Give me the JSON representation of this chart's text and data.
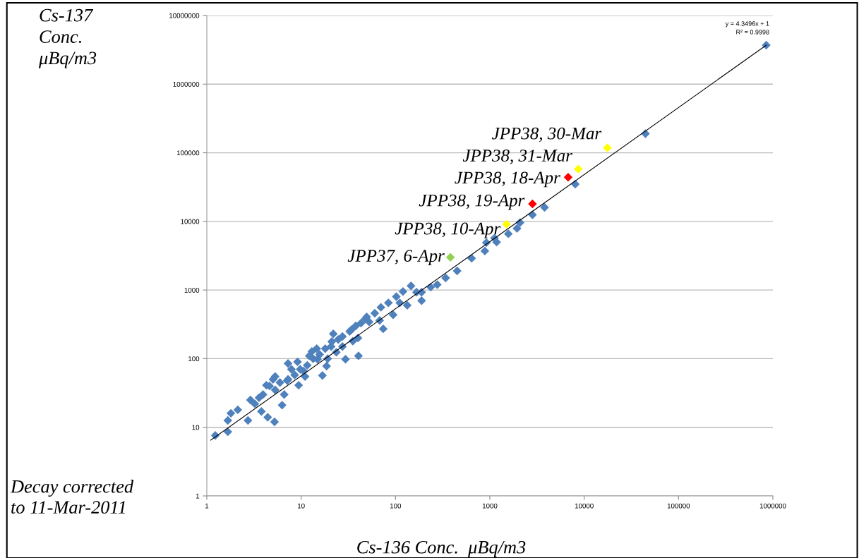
{
  "chart_data": {
    "type": "scatter",
    "xlabel": "Cs-136 Conc.  μBq/m3",
    "ylabel": "Cs-137\nConc.\nμBq/m3",
    "log": "xy",
    "grid": "y",
    "marker": "diamond",
    "legend": false,
    "xlim": [
      1,
      1000000
    ],
    "ylim": [
      1,
      10000000
    ],
    "xticks": [
      1,
      10,
      100,
      1000,
      10000,
      100000,
      1000000
    ],
    "yticks": [
      1,
      10,
      100,
      1000,
      10000,
      100000,
      1000000,
      10000000
    ],
    "series": [
      {
        "color": "#4f81bd",
        "x": [
          1.23,
          1.67,
          1.67,
          1.8,
          2.13,
          2.73,
          2.9,
          3.58,
          3.79,
          4.42,
          5.22,
          4.28,
          6.28,
          7.26,
          5.03,
          7.13,
          9.4,
          10.6,
          13,
          16.8,
          14.9,
          18.6,
          21.1,
          23.6,
          29.5,
          34.3,
          40.5,
          40,
          52.5,
          49.5,
          67.9,
          74.1,
          94.4,
          111,
          133,
          167,
          189,
          236,
          5.3,
          5.96,
          7.26,
          8.53,
          9.77,
          11.6,
          13.4,
          15.7,
          18,
          20.8,
          24.7,
          27.4,
          32.7,
          37.9,
          43.1,
          48,
          60.3,
          70,
          84,
          102,
          120,
          146,
          5.3,
          6.61,
          7.89,
          11,
          12.2,
          14.6,
          19.1,
          21.9,
          27.4,
          35.3,
          9.15,
          3.94,
          4.62,
          3.23,
          189,
          277,
          340,
          450,
          641,
          885,
          918,
          1120,
          1180,
          1570,
          1940,
          2090,
          2830,
          3800,
          8040,
          44600,
          850000
        ],
        "values": [
          7.6,
          8.6,
          12.6,
          16,
          18,
          12.6,
          25,
          27,
          17,
          14,
          12,
          41,
          21,
          85,
          50,
          48,
          41,
          66,
          127,
          57,
          98,
          78,
          177,
          124,
          98,
          266,
          110,
          200,
          344,
          405,
          361,
          272,
          435,
          650,
          600,
          930,
          700,
          1100,
          35,
          45,
          50,
          58,
          70,
          80,
          100,
          115,
          140,
          150,
          190,
          210,
          250,
          300,
          330,
          380,
          460,
          560,
          650,
          800,
          950,
          1150,
          55,
          30,
          70,
          55,
          110,
          140,
          100,
          230,
          150,
          180,
          90,
          30,
          40,
          22,
          930,
          1200,
          1500,
          1900,
          2900,
          3700,
          4900,
          5700,
          5000,
          6600,
          7900,
          9600,
          12500,
          16000,
          35000,
          190000,
          3700000
        ]
      },
      {
        "color": "#ffff00",
        "x": [
          17600,
          8650,
          1500
        ],
        "values": [
          118000,
          58000,
          9100
        ]
      },
      {
        "color": "#ff0000",
        "x": [
          6760,
          2830
        ],
        "values": [
          44000,
          18000
        ]
      },
      {
        "color": "#92d050",
        "x": [
          382
        ],
        "values": [
          3000
        ]
      },
      {
        "type": "line",
        "marker": "none",
        "color": "#000000",
        "x": [
          1.1,
          850000
        ],
        "values": [
          6.5,
          3700000
        ]
      }
    ],
    "annotations": [
      {
        "text": "JPP38, 30-Mar",
        "x": 17600,
        "y": 118000
      },
      {
        "text": "JPP38, 31-Mar",
        "x": 8650,
        "y": 58000
      },
      {
        "text": "JPP38, 18-Apr",
        "x": 6760,
        "y": 44000
      },
      {
        "text": "JPP38, 19-Apr",
        "x": 2830,
        "y": 18000
      },
      {
        "text": "JPP38, 10-Apr",
        "x": 1500,
        "y": 9100
      },
      {
        "text": "JPP37, 6-Apr",
        "x": 382,
        "y": 3000
      },
      "y = 4.3496x + 1",
      "R² = 0.9998",
      "Decay corrected\nto 11-Mar-2011"
    ]
  }
}
